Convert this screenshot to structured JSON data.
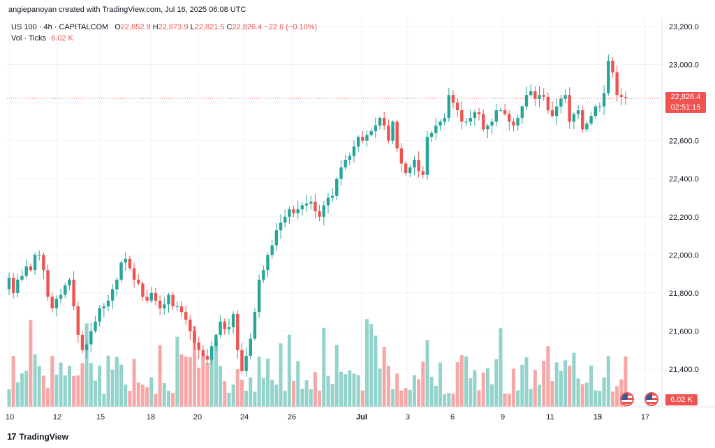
{
  "header": {
    "credit": "angiepanoyan created with TradingView.com, Jul 16, 2025 06:08 UTC",
    "symbol": "US 100 · 4h · CAPITALCOM",
    "open_label": "O",
    "open": "22,852.9",
    "high_label": "H",
    "high": "22,873.9",
    "low_label": "L",
    "low": "22,821.5",
    "close_label": "C",
    "close": "22,826.4",
    "change": "−22.6 (−0.10%)",
    "volume_label": "Vol · Ticks",
    "volume": "6.02 K"
  },
  "price_tag": {
    "price": "22,826.4",
    "countdown": "02:51:15"
  },
  "volume_tag": "6.02 K",
  "footer": {
    "logo": "17",
    "brand": "TradingView"
  },
  "colors": {
    "up": "#26a69a",
    "down": "#ef5350",
    "vol_up": "#93d3cb",
    "vol_down": "#f7a7a6",
    "grid": "#f0f3fa"
  },
  "chart_data": {
    "type": "candlestick",
    "title": "US 100 · 4h · CAPITALCOM",
    "y_ticks": [
      "23,200.0",
      "23,000.0",
      "22,800.0",
      "22,600.0",
      "22,400.0",
      "22,200.0",
      "22,000.0",
      "21,800.0",
      "21,600.0",
      "21,400.0"
    ],
    "y_tick_values": [
      23200,
      23000,
      22800,
      22600,
      22400,
      22200,
      22000,
      21800,
      21600,
      21400
    ],
    "x_ticks": [
      "10",
      "12",
      "15",
      "18",
      "20",
      "24",
      "26",
      "Jul",
      "3",
      "6",
      "9",
      "11",
      "13",
      "15",
      "17"
    ],
    "last_price": 22826.4,
    "grid": true,
    "closes": [
      21880,
      21800,
      21870,
      21890,
      21940,
      21920,
      22000,
      22000,
      21920,
      21780,
      21720,
      21770,
      21790,
      21840,
      21870,
      21730,
      21580,
      21500,
      21530,
      21600,
      21650,
      21720,
      21730,
      21760,
      21820,
      21870,
      21960,
      21980,
      21930,
      21870,
      21850,
      21780,
      21760,
      21800,
      21760,
      21720,
      21740,
      21790,
      21730,
      21730,
      21700,
      21660,
      21600,
      21540,
      21500,
      21470,
      21450,
      21520,
      21580,
      21650,
      21610,
      21620,
      21690,
      21500,
      21390,
      21470,
      21560,
      21700,
      21870,
      21920,
      22000,
      22050,
      22130,
      22170,
      22200,
      22240,
      22220,
      22240,
      22260,
      22270,
      22280,
      22230,
      22200,
      22260,
      22300,
      22310,
      22400,
      22460,
      22500,
      22520,
      22570,
      22620,
      22600,
      22630,
      22650,
      22680,
      22720,
      22680,
      22600,
      22700,
      22560,
      22480,
      22430,
      22460,
      22500,
      22440,
      22420,
      22620,
      22640,
      22680,
      22700,
      22720,
      22840,
      22800,
      22760,
      22700,
      22700,
      22720,
      22750,
      22740,
      22660,
      22680,
      22700,
      22760,
      22760,
      22740,
      22700,
      22680,
      22720,
      22780,
      22840,
      22860,
      22820,
      22840,
      22830,
      22760,
      22730,
      22780,
      22820,
      22840,
      22700,
      22740,
      22760,
      22660,
      22690,
      22730,
      22780,
      22780,
      22850,
      23020,
      22960,
      22840,
      22830,
      22826
    ]
  }
}
